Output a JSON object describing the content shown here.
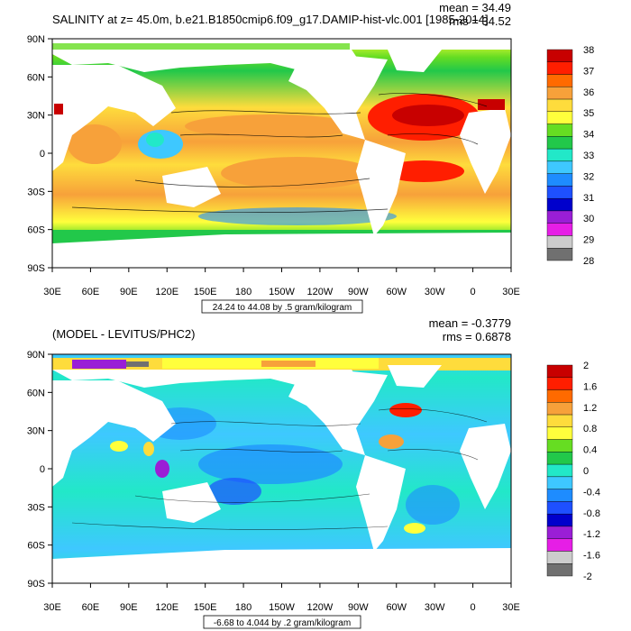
{
  "panels": [
    {
      "title": "SALINITY at z=  45.0m, b.e21.B1850cmip6.f09_g17.DAMIP-hist-vlc.001 [1985-2014]",
      "mean_label": "mean = 34.49",
      "rms_label": "rms = 34.52",
      "info_box": "24.24 to 44.08 by .5 gram/kilogram",
      "lat_ticks": [
        "90N",
        "60N",
        "30N",
        "0",
        "30S",
        "60S",
        "90S"
      ],
      "lon_ticks": [
        "30E",
        "60E",
        "90E",
        "120E",
        "150E",
        "180",
        "150W",
        "120W",
        "90W",
        "60W",
        "30W",
        "0",
        "30E"
      ],
      "colorbar_labels": [
        "38",
        "37",
        "36",
        "35",
        "34",
        "33",
        "32",
        "31",
        "30",
        "29",
        "28"
      ],
      "colorbar_colors": [
        "#c80000",
        "#ff1e00",
        "#ff6a00",
        "#f7a13a",
        "#fedc3c",
        "#ffff3c",
        "#66dd22",
        "#22c84a",
        "#22e8c8",
        "#3ec8ff",
        "#1e8cff",
        "#1e50ff",
        "#0000cc",
        "#9a1ed6",
        "#e61ee6",
        "#cccccc",
        "#707070"
      ]
    },
    {
      "title": "(MODEL - LEVITUS/PHC2)",
      "mean_label": "mean = -0.3779",
      "rms_label": "rms = 0.6878",
      "info_box": "-6.68 to 4.044 by .2 gram/kilogram",
      "lat_ticks": [
        "90N",
        "60N",
        "30N",
        "0",
        "30S",
        "60S",
        "90S"
      ],
      "lon_ticks": [
        "30E",
        "60E",
        "90E",
        "120E",
        "150E",
        "180",
        "150W",
        "120W",
        "90W",
        "60W",
        "30W",
        "0",
        "30E"
      ],
      "colorbar_labels": [
        "2",
        "1.6",
        "1.2",
        "0.8",
        "0.4",
        "0",
        "-0.4",
        "-0.8",
        "-1.2",
        "-1.6",
        "-2"
      ],
      "colorbar_colors": [
        "#c80000",
        "#ff1e00",
        "#ff6a00",
        "#f7a13a",
        "#fedc3c",
        "#ffff3c",
        "#66dd22",
        "#22c84a",
        "#22e8c8",
        "#3ec8ff",
        "#1e8cff",
        "#1e50ff",
        "#0000cc",
        "#9a1ed6",
        "#e61ee6",
        "#cccccc",
        "#707070"
      ]
    }
  ]
}
